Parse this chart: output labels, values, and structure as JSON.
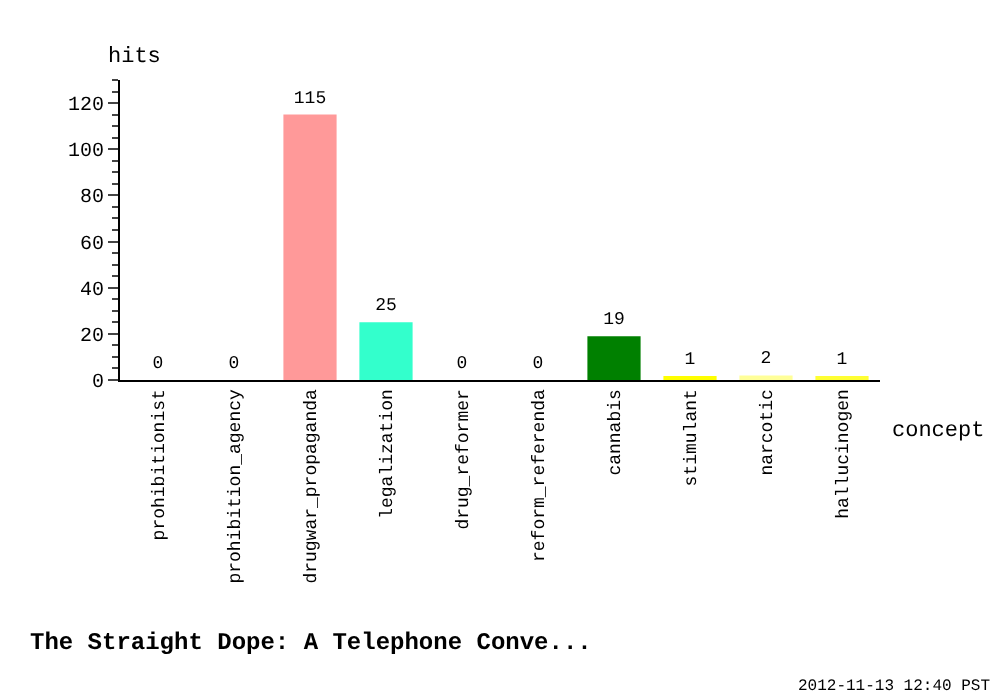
{
  "chart_data": {
    "type": "bar",
    "title": "The Straight Dope: A Telephone Conve...",
    "xlabel": "concept",
    "ylabel": "hits",
    "categories": [
      "prohibitionist",
      "prohibition_agency",
      "drugwar_propaganda",
      "legalization",
      "drug_reformer",
      "reform_referenda",
      "cannabis",
      "stimulant",
      "narcotic",
      "hallucinogen"
    ],
    "values": [
      0,
      0,
      115,
      25,
      0,
      0,
      19,
      1,
      2,
      1
    ],
    "colors": [
      "#ffcc99",
      "#ffcc66",
      "#ff9999",
      "#33ffcc",
      "#99ffff",
      "#66ffff",
      "#008000",
      "#ffff00",
      "#ffff99",
      "#ffff33"
    ],
    "ylim": [
      0,
      130
    ],
    "yticks": [
      0,
      20,
      40,
      60,
      80,
      100,
      120
    ],
    "data_labels": true,
    "annotations": [
      "2012-11-13 12:40 PST"
    ]
  }
}
